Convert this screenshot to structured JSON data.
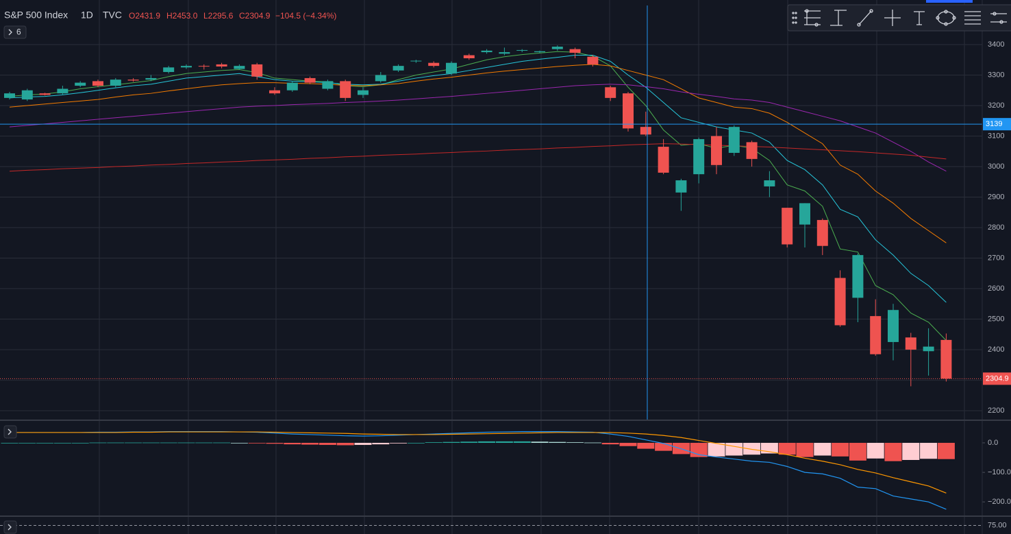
{
  "header": {
    "symbol": "S&P 500 Index",
    "interval": "1D",
    "source": "TVC",
    "open": "O2431.9",
    "high": "H2453.0",
    "low": "L2295.6",
    "close": "C2304.9",
    "change": "−104.5 (−4.34%)",
    "hidden_indicators": 6
  },
  "chart_data": [
    {
      "type": "candlestick",
      "up_color": "#26a69a",
      "down_color": "#ef5350",
      "grid": true,
      "ylim": [
        2171,
        3528
      ],
      "yticks": [
        3400,
        3300,
        3200,
        3100,
        3000,
        2900,
        2800,
        2700,
        2600,
        2500,
        2400,
        2300,
        2200
      ],
      "open": [
        3225,
        3220,
        3240,
        3240,
        3265,
        3280,
        3265,
        3285,
        3285,
        3310,
        3325,
        3330,
        3335,
        3320,
        3335,
        3250,
        3250,
        3290,
        3255,
        3280,
        3235,
        3280,
        3315,
        3345,
        3340,
        3305,
        3365,
        3375,
        3370,
        3380,
        3375,
        3385,
        3385,
        3360,
        3260,
        3240,
        3130,
        3065,
        2915,
        2975,
        3100,
        3045,
        3080,
        2935,
        2865,
        2810,
        2825,
        2635,
        2570,
        2510,
        2425,
        2440,
        2395,
        2431.9
      ],
      "high": [
        3245,
        3255,
        3242,
        3265,
        3280,
        3285,
        3290,
        3290,
        3300,
        3330,
        3335,
        3335,
        3340,
        3335,
        3340,
        3260,
        3280,
        3295,
        3285,
        3285,
        3260,
        3310,
        3335,
        3350,
        3345,
        3345,
        3370,
        3385,
        3390,
        3385,
        3380,
        3397,
        3390,
        3365,
        3265,
        3245,
        3180,
        3090,
        2960,
        3095,
        3130,
        3135,
        3085,
        2985,
        2865,
        2880,
        2830,
        2660,
        2715,
        2565,
        2550,
        2455,
        2470,
        2453.0
      ],
      "low": [
        3220,
        3215,
        3233,
        3235,
        3260,
        3260,
        3260,
        3278,
        3280,
        3305,
        3320,
        3318,
        3322,
        3318,
        3285,
        3235,
        3245,
        3270,
        3250,
        3215,
        3225,
        3275,
        3310,
        3340,
        3325,
        3300,
        3350,
        3370,
        3365,
        3375,
        3372,
        3380,
        3355,
        3328,
        3215,
        3115,
        3100,
        2975,
        2855,
        2945,
        2975,
        3035,
        3000,
        2900,
        2735,
        2735,
        2710,
        2475,
        2490,
        2380,
        2365,
        2280,
        2315,
        2295.6
      ],
      "close": [
        3240,
        3250,
        3235,
        3255,
        3275,
        3265,
        3285,
        3282,
        3290,
        3325,
        3330,
        3328,
        3328,
        3330,
        3295,
        3240,
        3275,
        3275,
        3280,
        3225,
        3250,
        3300,
        3330,
        3347,
        3330,
        3340,
        3355,
        3380,
        3375,
        3382,
        3378,
        3393,
        3373,
        3335,
        3225,
        3125,
        3105,
        2980,
        2955,
        3090,
        3005,
        3130,
        3025,
        2955,
        2745,
        2880,
        2740,
        2480,
        2710,
        2385,
        2530,
        2400,
        2410,
        2304.9
      ],
      "crosshair_price": 3139,
      "crosshair_color": "#2196f3",
      "last_color": "#ef5350",
      "overlays": [
        {
          "color": "#4caf50",
          "values": [
            3230,
            3235,
            3238,
            3245,
            3255,
            3262,
            3268,
            3275,
            3282,
            3295,
            3305,
            3310,
            3315,
            3318,
            3308,
            3290,
            3285,
            3280,
            3278,
            3265,
            3262,
            3268,
            3285,
            3300,
            3310,
            3320,
            3335,
            3350,
            3360,
            3367,
            3372,
            3377,
            3375,
            3362,
            3330,
            3260,
            3200,
            3120,
            3070,
            3075,
            3060,
            3070,
            3060,
            3020,
            2940,
            2920,
            2870,
            2730,
            2720,
            2610,
            2580,
            2520,
            2490,
            2430
          ]
        },
        {
          "color": "#26c6da",
          "values": [
            3225,
            3228,
            3230,
            3235,
            3242,
            3250,
            3258,
            3265,
            3270,
            3280,
            3290,
            3295,
            3300,
            3305,
            3295,
            3285,
            3280,
            3278,
            3275,
            3270,
            3268,
            3270,
            3280,
            3290,
            3298,
            3305,
            3315,
            3325,
            3335,
            3345,
            3352,
            3358,
            3365,
            3365,
            3345,
            3300,
            3260,
            3210,
            3160,
            3145,
            3130,
            3120,
            3110,
            3080,
            3020,
            2990,
            2940,
            2860,
            2835,
            2760,
            2710,
            2650,
            2610,
            2555
          ]
        },
        {
          "color": "#f57c00",
          "values": [
            3195,
            3200,
            3205,
            3210,
            3215,
            3220,
            3228,
            3235,
            3240,
            3248,
            3255,
            3262,
            3268,
            3272,
            3275,
            3275,
            3273,
            3272,
            3270,
            3266,
            3265,
            3268,
            3272,
            3280,
            3287,
            3293,
            3300,
            3307,
            3313,
            3318,
            3323,
            3328,
            3332,
            3335,
            3330,
            3315,
            3300,
            3285,
            3255,
            3225,
            3210,
            3195,
            3190,
            3175,
            3145,
            3110,
            3075,
            3005,
            2975,
            2920,
            2880,
            2830,
            2790,
            2750
          ]
        },
        {
          "color": "#9c27b0",
          "values": [
            3130,
            3135,
            3140,
            3145,
            3150,
            3155,
            3160,
            3165,
            3170,
            3175,
            3180,
            3185,
            3190,
            3195,
            3198,
            3200,
            3203,
            3205,
            3207,
            3210,
            3212,
            3215,
            3218,
            3222,
            3226,
            3230,
            3235,
            3240,
            3245,
            3250,
            3255,
            3260,
            3265,
            3268,
            3270,
            3268,
            3262,
            3255,
            3245,
            3237,
            3230,
            3222,
            3218,
            3210,
            3195,
            3180,
            3165,
            3150,
            3130,
            3110,
            3080,
            3050,
            3015,
            2985
          ]
        },
        {
          "color": "#c62828",
          "values": [
            2985,
            2988,
            2990,
            2993,
            2995,
            2997,
            3000,
            3002,
            3005,
            3007,
            3010,
            3012,
            3015,
            3017,
            3020,
            3022,
            3024,
            3027,
            3029,
            3032,
            3034,
            3037,
            3039,
            3041,
            3044,
            3046,
            3049,
            3051,
            3054,
            3056,
            3058,
            3061,
            3063,
            3066,
            3068,
            3071,
            3073,
            3075,
            3074,
            3072,
            3070,
            3068,
            3066,
            3064,
            3061,
            3058,
            3055,
            3052,
            3049,
            3045,
            3041,
            3037,
            3031,
            3025
          ]
        }
      ]
    },
    {
      "type": "macd",
      "ylim": [
        -246,
        72
      ],
      "yticks": [
        {
          "value": 0,
          "label": "0.0"
        },
        {
          "value": -100,
          "label": "−100.0"
        },
        {
          "value": -200,
          "label": "−200.0"
        }
      ],
      "histogram": {
        "colors": {
          "up_rising": "#26a69a",
          "up_falling": "#b2dfdb",
          "down_falling": "#ef5350",
          "down_rising": "#ffcdd2"
        },
        "values": [
          0,
          0,
          0,
          0,
          0,
          1,
          1,
          1,
          1,
          1,
          1,
          1,
          1,
          0,
          -1,
          -3,
          -5,
          -6,
          -7,
          -8,
          -7,
          -5,
          -2,
          0,
          2,
          3,
          4,
          5,
          5,
          5,
          4,
          3,
          2,
          1,
          -5,
          -11,
          -20,
          -27,
          -38,
          -48,
          -46,
          -43,
          -40,
          -36,
          -40,
          -48,
          -43,
          -46,
          -60,
          -53,
          -62,
          -58,
          -54,
          -55
        ]
      },
      "series": [
        {
          "color": "#2196f3",
          "values": [
            35,
            35,
            35,
            35,
            35,
            36,
            36,
            37,
            37,
            38,
            38,
            38,
            38,
            37,
            36,
            33,
            30,
            28,
            26,
            24,
            23,
            24,
            26,
            28,
            30,
            32,
            34,
            36,
            37,
            38,
            38,
            38,
            37,
            36,
            30,
            22,
            10,
            -2,
            -20,
            -40,
            -48,
            -55,
            -62,
            -66,
            -80,
            -100,
            -105,
            -120,
            -150,
            -155,
            -180,
            -190,
            -200,
            -225
          ]
        },
        {
          "color": "#ff9800",
          "values": [
            35,
            35,
            35,
            35,
            35,
            35,
            35,
            36,
            36,
            37,
            37,
            37,
            37,
            37,
            37,
            36,
            35,
            34,
            33,
            32,
            30,
            29,
            28,
            28,
            28,
            29,
            30,
            31,
            32,
            33,
            34,
            35,
            35,
            35,
            35,
            33,
            30,
            25,
            18,
            8,
            -2,
            -12,
            -22,
            -30,
            -40,
            -52,
            -62,
            -74,
            -90,
            -102,
            -118,
            -132,
            -146,
            -170
          ]
        }
      ]
    },
    {
      "type": "level",
      "ylim": [
        65,
        85
      ],
      "yticks": [
        {
          "value": 75,
          "label": "75.00"
        }
      ]
    }
  ]
}
